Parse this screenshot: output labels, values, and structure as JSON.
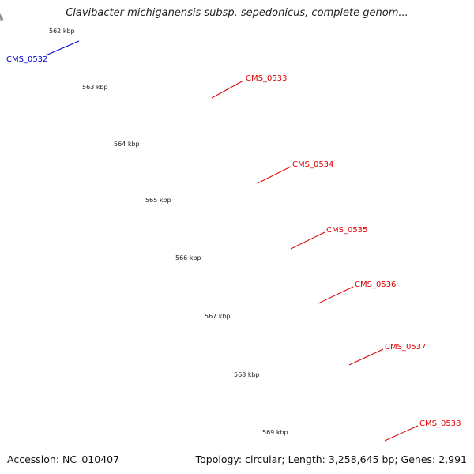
{
  "title": "Clavibacter michiganensis subsp. sepedonicus, complete genom...",
  "footer": {
    "accession": "Accession: NC_010407",
    "summary": "Topology: circular; Length: 3,258,645 bp; Genes: 2,991"
  },
  "scale_labels": [
    "562 kbp",
    "563 kbp",
    "564 kbp",
    "565 kbp",
    "566 kbp",
    "567 kbp",
    "568 kbp",
    "569 kbp"
  ],
  "genes": [
    {
      "name": "CMS_0532",
      "color": "#0000cc",
      "label_side": "left"
    },
    {
      "name": "CMS_0533",
      "color": "#dd0000",
      "label_side": "right"
    },
    {
      "name": "CMS_0534",
      "color": "#dd0000",
      "label_side": "right"
    },
    {
      "name": "CMS_0535",
      "color": "#dd0000",
      "label_side": "right"
    },
    {
      "name": "CMS_0536",
      "color": "#dd0000",
      "label_side": "right"
    },
    {
      "name": "CMS_0537",
      "color": "#dd0000",
      "label_side": "right"
    },
    {
      "name": "CMS_0538",
      "color": "#dd0000",
      "label_side": "right"
    }
  ],
  "colors": {
    "backbone": "#8a8a8a",
    "cds_red": "#ff0000",
    "cds_cyan": "#1ec8f5",
    "cds_purple": "#4a4488",
    "cds_blue": "#0000ee",
    "cds_steel": "#4a7fb5",
    "scale_ticks": "#1a7a1a",
    "label_red": "#dd0000",
    "label_blue": "#0000cc"
  }
}
